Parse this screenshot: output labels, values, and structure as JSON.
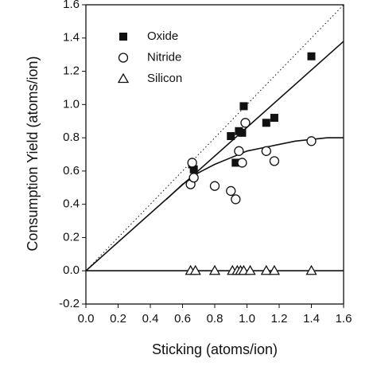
{
  "chart_data": {
    "type": "scatter",
    "x_label": "Sticking (atoms/ion)",
    "y_label": "Consumption Yield (atoms/ion)",
    "xlim": [
      0,
      1.6
    ],
    "ylim": [
      -0.2,
      1.6
    ],
    "xticks": [
      {
        "value": 0,
        "label": "0.0"
      },
      0.2,
      0.4,
      0.6,
      0.8,
      {
        "value": 1,
        "label": "1.0"
      },
      1.2,
      1.4,
      1.6
    ],
    "yticks": [
      -0.2,
      {
        "value": 0,
        "label": "0.0"
      },
      0.2,
      0.4,
      0.6,
      0.8,
      {
        "value": 1,
        "label": "1.0"
      },
      1.2,
      1.4,
      1.6
    ],
    "legend": "upper left",
    "series": [
      {
        "name": "Oxide",
        "marker": "filled-square",
        "color": "#111111",
        "x": [
          0.66,
          0.67,
          0.9,
          0.93,
          0.95,
          0.97,
          0.98,
          1.12,
          1.17,
          1.4
        ],
        "values": [
          0.64,
          0.61,
          0.81,
          0.65,
          0.84,
          0.83,
          0.99,
          0.89,
          0.92,
          1.29
        ]
      },
      {
        "name": "Nitride",
        "marker": "open-circle",
        "color": "#111111",
        "x": [
          0.65,
          0.66,
          0.67,
          0.8,
          0.9,
          0.93,
          0.95,
          0.97,
          0.99,
          1.12,
          1.17,
          1.4
        ],
        "values": [
          0.52,
          0.65,
          0.56,
          0.51,
          0.48,
          0.43,
          0.72,
          0.65,
          0.89,
          0.72,
          0.66,
          0.78
        ]
      },
      {
        "name": "Silicon",
        "marker": "open-triangle",
        "color": "#111111",
        "x": [
          0.65,
          0.68,
          0.8,
          0.91,
          0.94,
          0.96,
          0.98,
          1.02,
          1.12,
          1.17,
          1.4
        ],
        "values": [
          0,
          0,
          0,
          0,
          0,
          0,
          0,
          0,
          0,
          0,
          0
        ]
      }
    ],
    "fit_lines": [
      {
        "style": "dotted",
        "x": [
          0,
          1.6
        ],
        "y": [
          0,
          1.6
        ]
      },
      {
        "style": "solid",
        "x": [
          0,
          1.6
        ],
        "y": [
          0,
          1.38
        ]
      },
      {
        "style": "solid",
        "x": [
          0.5,
          0.6,
          0.7,
          0.8,
          0.9,
          1.0,
          1.1,
          1.2,
          1.3,
          1.4,
          1.5,
          1.6
        ],
        "y": [
          0.43,
          0.52,
          0.59,
          0.64,
          0.68,
          0.72,
          0.74,
          0.76,
          0.78,
          0.79,
          0.8,
          0.8
        ]
      },
      {
        "style": "solid",
        "x": [
          0,
          1.6
        ],
        "y": [
          0,
          0
        ]
      }
    ]
  }
}
